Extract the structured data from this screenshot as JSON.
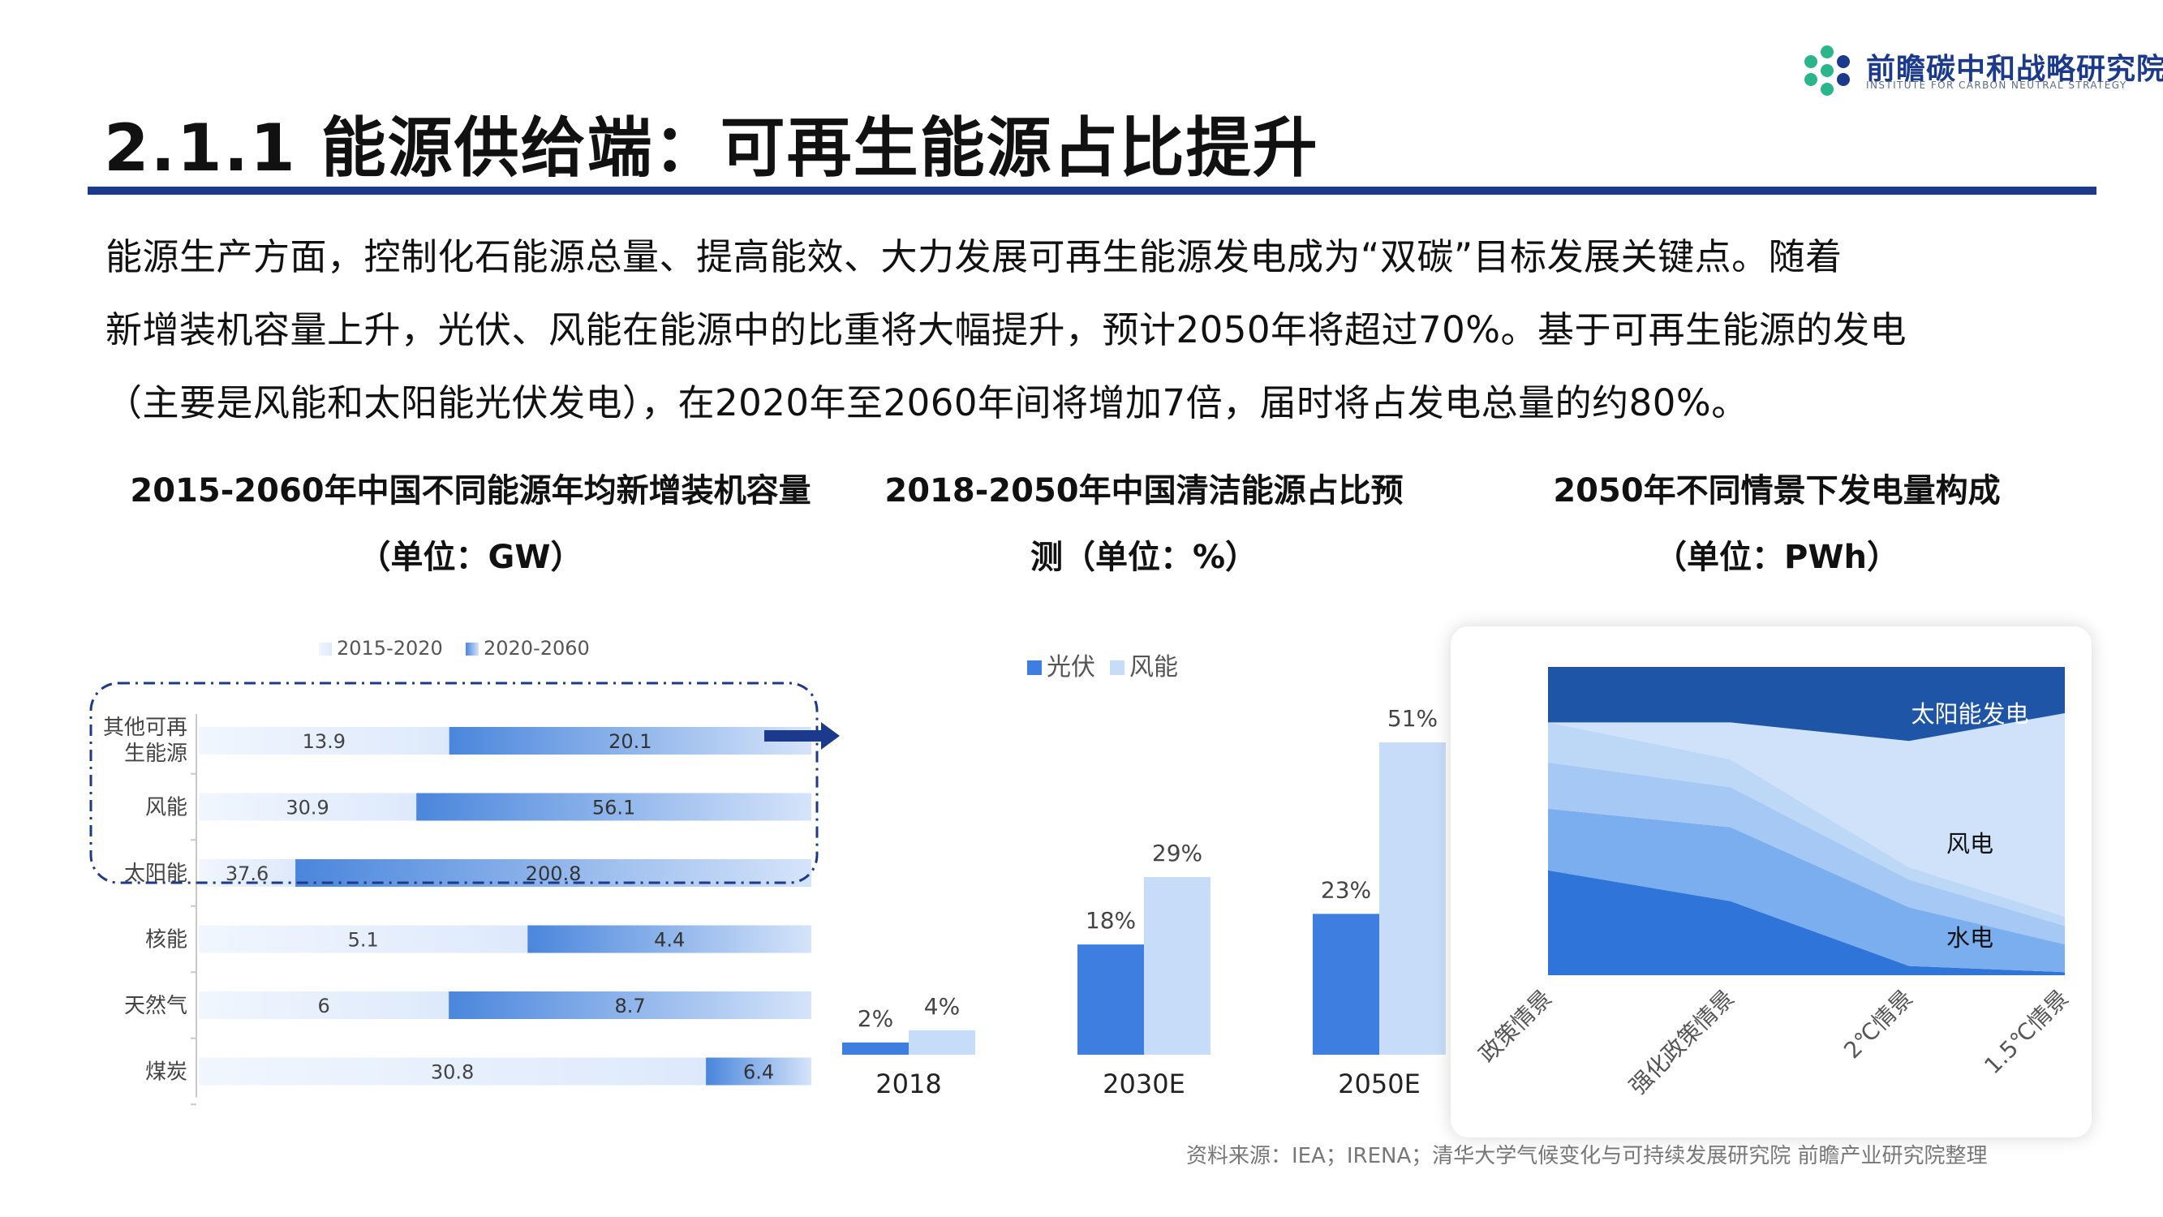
{
  "header": {
    "title": "2.1.1 能源供给端：可再生能源占比提升",
    "logo_name": "前瞻碳中和战略研究院",
    "logo_subtitle": "INSTITUTE FOR CARBON NEUTRAL STRATEGY",
    "logo_icon": "hexagon-c-logo-icon",
    "accent_color": "#1c3a8c"
  },
  "body_text": [
    "能源生产方面，控制化石能源总量、提高能效、大力发展可再生能源发电成为“双碳”目标发展关键点。随着",
    "新增装机容量上升，光伏、风能在能源中的比重将大幅提升，预计2050年将超过70%。基于可再生能源的发电",
    "（主要是风能和太阳能光伏发电），在2020年至2060年间将增加7倍，届时将占发电总量的约80%。"
  ],
  "chart_titles": {
    "left": [
      "2015-2060年中国不同能源年均新增装机容量",
      "（单位：GW）"
    ],
    "middle": [
      "2018-2050年中国清洁能源占比预",
      "测（单位：%）"
    ],
    "right": [
      "2050年不同情景下发电量构成",
      "（单位：PWh）"
    ]
  },
  "chart_data": [
    {
      "type": "bar",
      "orientation": "horizontal",
      "stacked": true,
      "categories": [
        "其他可再生能源",
        "风能",
        "太阳能",
        "核能",
        "天然气",
        "煤炭"
      ],
      "category_display": [
        [
          "其他可再",
          "生能源"
        ],
        [
          "风能"
        ],
        [
          "太阳能"
        ],
        [
          "核能"
        ],
        [
          "天然气"
        ],
        [
          "煤炭"
        ]
      ],
      "series": [
        {
          "name": "2015-2020",
          "values": [
            13.9,
            30.9,
            37.6,
            5.1,
            6,
            30.8
          ],
          "labels": [
            "13.9",
            "30.9",
            "37.6",
            "5.1",
            "6",
            "30.8"
          ],
          "color": "#dde9fb"
        },
        {
          "name": "2020-2060",
          "values": [
            20.1,
            56.1,
            200.8,
            4.4,
            8.7,
            6.4
          ],
          "labels": [
            "20.1",
            "56.1",
            "200.8",
            "4.4",
            "8.7",
            "6.4"
          ],
          "color": "#4a86dc"
        }
      ],
      "normalized_to_100_percent": true,
      "legend_position": "top",
      "highlight_group": [
        "其他可再生能源",
        "风能",
        "太阳能"
      ],
      "highlight_style": "dash-dot rounded box",
      "arrow": "right"
    },
    {
      "type": "bar",
      "categories": [
        "2018",
        "2030E",
        "2050E"
      ],
      "series": [
        {
          "name": "光伏",
          "values": [
            2,
            18,
            23
          ],
          "labels": [
            "2%",
            "18%",
            "23%"
          ],
          "color": "#3d7ee0"
        },
        {
          "name": "风能",
          "values": [
            4,
            29,
            51
          ],
          "labels": [
            "4%",
            "29%",
            "51%"
          ],
          "color": "#c7dcf8"
        }
      ],
      "ylim": [
        0,
        55
      ],
      "legend_position": "top-left",
      "grid": false
    },
    {
      "type": "area",
      "stacked": true,
      "normalized_to_100_percent": true,
      "categories": [
        "政策情景",
        "强化政策情景",
        "2℃情景",
        "1.5℃情景"
      ],
      "layers_bottom_to_top": [
        {
          "name": "",
          "values": [
            34,
            24,
            3,
            1
          ],
          "color": "#2f74d8"
        },
        {
          "name": "",
          "values": [
            20,
            24,
            19,
            9
          ],
          "color": "#7aaeee"
        },
        {
          "name": "水电",
          "values": [
            15,
            13,
            9,
            6
          ],
          "color": "#a6c8f4",
          "label": "水电"
        },
        {
          "name": "风电",
          "values": [
            13,
            9,
            4,
            3
          ],
          "color": "#bdd7f7",
          "label": "风电"
        },
        {
          "name": "",
          "values": [
            0,
            12,
            41,
            66
          ],
          "color": "#cfe2f9"
        },
        {
          "name": "太阳能发电",
          "values": [
            18,
            18,
            24,
            15
          ],
          "color": "#1e55a6",
          "label": "太阳能发电"
        }
      ],
      "labels": [
        "太阳能发电",
        "风电",
        "水电"
      ],
      "legend_position": "none",
      "grid": false
    }
  ],
  "source": "资料来源：IEA；IRENA；清华大学气候变化与可持续发展研究院 前瞻产业研究院整理"
}
